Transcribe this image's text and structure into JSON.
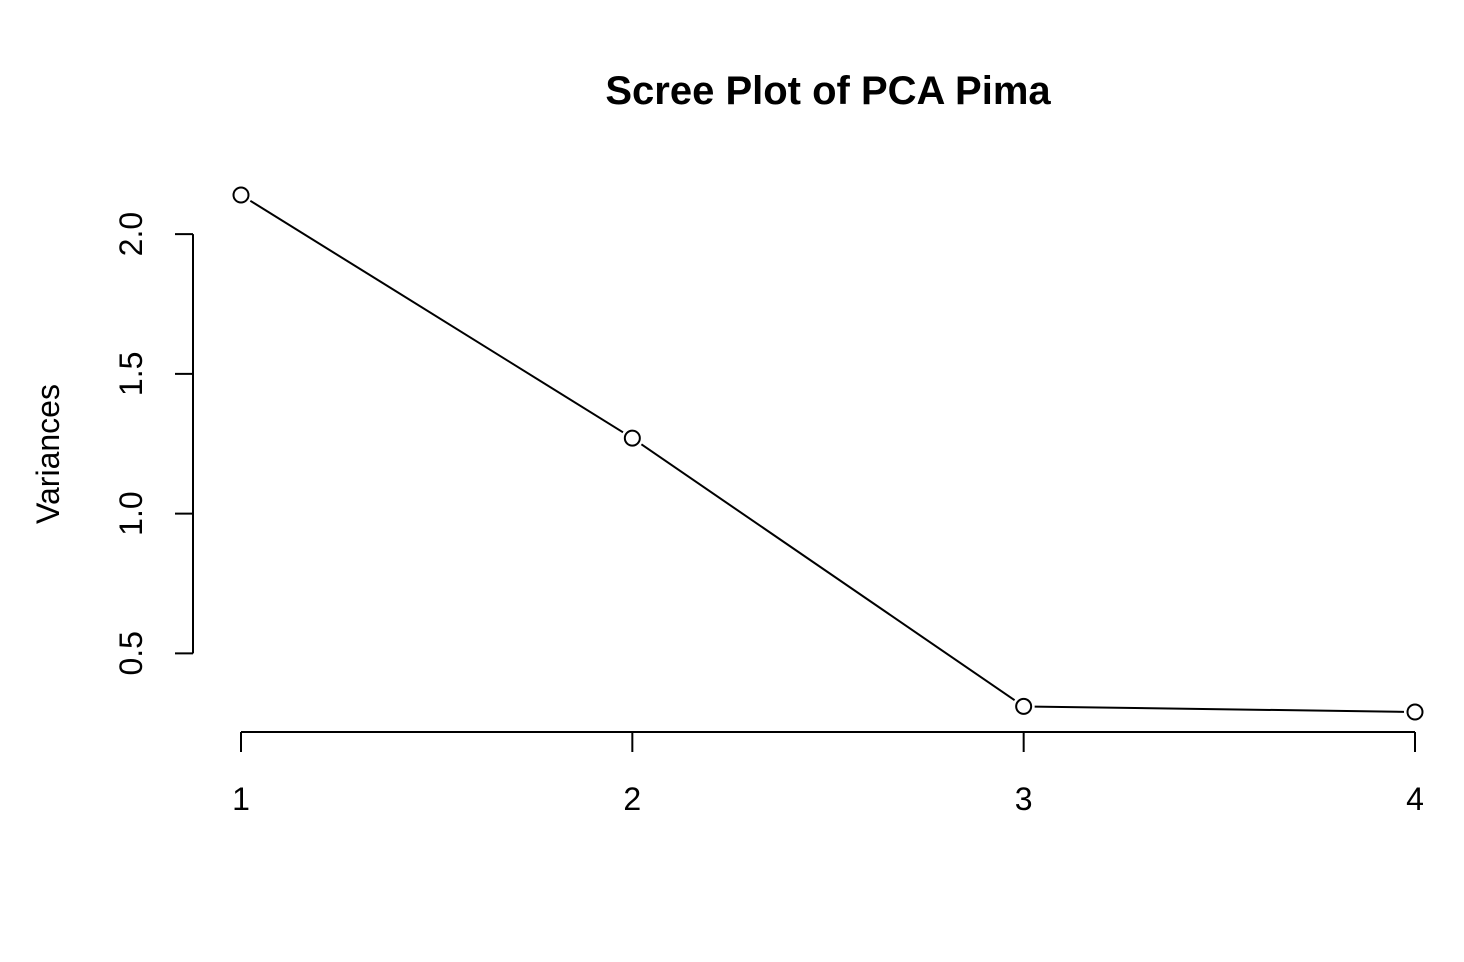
{
  "chart_data": {
    "type": "line",
    "title": "Scree Plot of PCA Pima",
    "xlabel": "",
    "ylabel": "Variances",
    "x": [
      1,
      2,
      3,
      4
    ],
    "series": [
      {
        "values": [
          2.14,
          1.27,
          0.31,
          0.29
        ]
      }
    ],
    "x_ticks": [
      "1",
      "2",
      "3",
      "4"
    ],
    "y_ticks": [
      "0.5",
      "1.0",
      "1.5",
      "2.0"
    ],
    "y_tick_values": [
      0.5,
      1.0,
      1.5,
      2.0
    ],
    "xlim": [
      1,
      4
    ],
    "ylim": [
      0.29,
      2.14
    ],
    "markers": "open-circle",
    "grid": false,
    "legend": "none",
    "colors": {
      "line": "#000000",
      "marker_fill": "#ffffff"
    }
  }
}
